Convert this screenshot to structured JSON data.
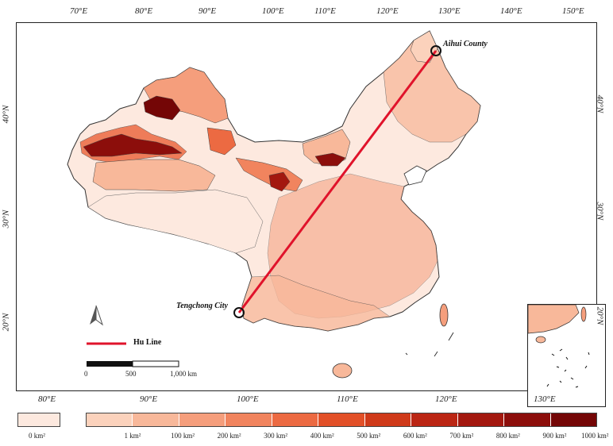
{
  "top_longitudes": [
    "70°E",
    "80°E",
    "90°E",
    "100°E",
    "110°E",
    "120°E",
    "130°E",
    "140°E",
    "150°E"
  ],
  "bottom_longitudes": [
    "80°E",
    "90°E",
    "100°E",
    "110°E",
    "120°E",
    "130°E"
  ],
  "latitudes_left": [
    "40°N",
    "30°N",
    "20°N"
  ],
  "latitudes_right": [
    "40°N",
    "30°N",
    "20°N"
  ],
  "places": {
    "aihui": "Aihui County",
    "tengchong": "Tengchong City"
  },
  "hu_line_label": "Hu Line",
  "scale_bar": {
    "labels": [
      "0",
      "500",
      "1,000 km"
    ]
  },
  "legend": {
    "zero_label": "0 km²",
    "zero_color": "#fde9df",
    "labels": [
      "1 km²",
      "100 km²",
      "200 km²",
      "300 km²",
      "400 km²",
      "500 km²",
      "600 km²",
      "700 km²",
      "800 km²",
      "900 km²",
      "1000 km²"
    ],
    "colors": [
      "#fbd2bc",
      "#f8b89a",
      "#f59e7c",
      "#f1845e",
      "#ec6a42",
      "#e25028",
      "#cf3a1a",
      "#bb2614",
      "#a3180f",
      "#8c0e0b",
      "#740606"
    ]
  },
  "colors": {
    "hu_line": "#e0132b",
    "border": "#333333",
    "base_fill": "#fde9df"
  }
}
